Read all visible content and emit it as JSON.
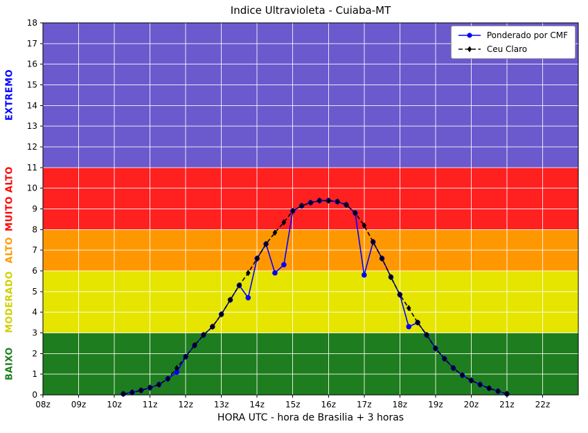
{
  "chart_data": {
    "type": "line",
    "title": "Indice Ultravioleta - Cuiaba-MT",
    "xlabel": "HORA UTC - hora de Brasilia + 3 horas",
    "ylabel": "",
    "xlim": [
      8,
      23
    ],
    "ylim": [
      0,
      18
    ],
    "grid": true,
    "grid_color": "rgba(255,255,255,0.85)",
    "background_color": "#ffffff",
    "x_ticks": [
      {
        "value": 8,
        "label": "08z"
      },
      {
        "value": 9,
        "label": "09z"
      },
      {
        "value": 10,
        "label": "10z"
      },
      {
        "value": 11,
        "label": "11z"
      },
      {
        "value": 12,
        "label": "12z"
      },
      {
        "value": 13,
        "label": "13z"
      },
      {
        "value": 14,
        "label": "14z"
      },
      {
        "value": 15,
        "label": "15z"
      },
      {
        "value": 16,
        "label": "16z"
      },
      {
        "value": 17,
        "label": "17z"
      },
      {
        "value": 18,
        "label": "18z"
      },
      {
        "value": 19,
        "label": "19z"
      },
      {
        "value": 20,
        "label": "20z"
      },
      {
        "value": 21,
        "label": "21z"
      },
      {
        "value": 22,
        "label": "22z"
      }
    ],
    "y_ticks": [
      0,
      1,
      2,
      3,
      4,
      5,
      6,
      7,
      8,
      9,
      10,
      11,
      12,
      13,
      14,
      15,
      16,
      17,
      18
    ],
    "bands": [
      {
        "label": "BAIXO",
        "from": 0,
        "to": 3,
        "color": "#1e7d1e",
        "label_color": "#1e7d1e"
      },
      {
        "label": "MODERADO",
        "from": 3,
        "to": 6,
        "color": "#e5e500",
        "label_color": "#d0d000"
      },
      {
        "label": "ALTO",
        "from": 6,
        "to": 8,
        "color": "#ff9800",
        "label_color": "#ff9800"
      },
      {
        "label": "MUITO ALTO",
        "from": 8,
        "to": 11,
        "color": "#ff2020",
        "label_color": "#ff0000"
      },
      {
        "label": "EXTREMO",
        "from": 11,
        "to": 18,
        "color": "#6a5acd",
        "label_color": "#0000ff"
      }
    ],
    "series": [
      {
        "name": "Ponderado por CMF",
        "color": "#0000ff",
        "style": "solid",
        "marker": "circle",
        "x": [
          10.25,
          10.5,
          10.75,
          11.0,
          11.25,
          11.5,
          11.75,
          12.0,
          12.25,
          12.5,
          12.75,
          13.0,
          13.25,
          13.5,
          13.75,
          14.0,
          14.25,
          14.5,
          14.75,
          15.0,
          15.25,
          15.5,
          15.75,
          16.0,
          16.25,
          16.5,
          16.75,
          17.0,
          17.25,
          17.5,
          17.75,
          18.0,
          18.25,
          18.5,
          18.75,
          19.0,
          19.25,
          19.5,
          19.75,
          20.0,
          20.25,
          20.5,
          20.75,
          21.0
        ],
        "y": [
          0.05,
          0.12,
          0.22,
          0.35,
          0.5,
          0.78,
          1.1,
          1.85,
          2.4,
          2.9,
          3.3,
          3.9,
          4.6,
          5.3,
          4.7,
          6.6,
          7.3,
          5.9,
          6.3,
          8.9,
          9.15,
          9.3,
          9.4,
          9.4,
          9.35,
          9.2,
          8.8,
          5.8,
          7.4,
          6.6,
          5.7,
          4.85,
          3.3,
          3.5,
          2.9,
          2.25,
          1.75,
          1.3,
          0.95,
          0.7,
          0.5,
          0.32,
          0.18,
          0.05
        ]
      },
      {
        "name": "Ceu Claro",
        "color": "#000000",
        "style": "dashed",
        "marker": "diamond",
        "x": [
          10.25,
          10.5,
          10.75,
          11.0,
          11.25,
          11.5,
          11.75,
          12.0,
          12.25,
          12.5,
          12.75,
          13.0,
          13.25,
          13.5,
          13.75,
          14.0,
          14.25,
          14.5,
          14.75,
          15.0,
          15.25,
          15.5,
          15.75,
          16.0,
          16.25,
          16.5,
          16.75,
          17.0,
          17.25,
          17.5,
          17.75,
          18.0,
          18.25,
          18.5,
          18.75,
          19.0,
          19.25,
          19.5,
          19.75,
          20.0,
          20.25,
          20.5,
          20.75,
          21.0
        ],
        "y": [
          0.05,
          0.12,
          0.22,
          0.35,
          0.5,
          0.78,
          1.3,
          1.85,
          2.4,
          2.9,
          3.3,
          3.9,
          4.6,
          5.3,
          5.9,
          6.6,
          7.3,
          7.85,
          8.35,
          8.9,
          9.15,
          9.3,
          9.4,
          9.4,
          9.35,
          9.2,
          8.8,
          8.2,
          7.4,
          6.6,
          5.7,
          4.85,
          4.2,
          3.5,
          2.9,
          2.25,
          1.75,
          1.3,
          0.95,
          0.7,
          0.5,
          0.32,
          0.18,
          0.05
        ]
      }
    ],
    "legend": {
      "position": "upper-right",
      "entries": [
        "Ponderado por CMF",
        "Ceu Claro"
      ]
    }
  }
}
